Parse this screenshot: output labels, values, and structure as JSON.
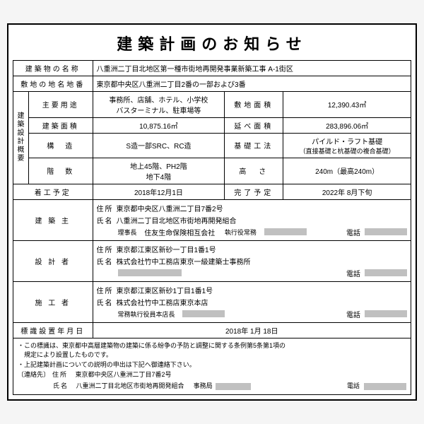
{
  "title": "建築計画のお知らせ",
  "rows": {
    "building_name_h": "建築物の名称",
    "building_name_v": "八重洲二丁目北地区第一種市街地再開発事業新築工事 A-1街区",
    "site_address_h": "敷地の地名地番",
    "site_address_v": "東京都中央区八重洲二丁目2番の一部および3番",
    "overview_h": "建築設計概要",
    "use_h": "主要用途",
    "use_v1": "事務所、店舗、ホテル、小学校",
    "use_v2": "バスターミナル、駐車場等",
    "site_area_h": "敷地面積",
    "site_area_v": "12,390.43㎡",
    "build_area_h": "建築面積",
    "build_area_v": "10,875.16㎡",
    "floor_area_h": "延べ面積",
    "floor_area_v": "283,896.06㎡",
    "structure_h": "構　造",
    "structure_v": "S造一部SRC、RC造",
    "foundation_h": "基礎工法",
    "foundation_v1": "パイルド・ラフト基礎",
    "foundation_v2": "（直接基礎と杭基礎の複合基礎）",
    "floors_h": "階　数",
    "floors_v1": "地上45階、PH2階",
    "floors_v2": "地下4階",
    "height_h": "高　さ",
    "height_v": "240m（最高240m）",
    "start_h": "着工予定",
    "start_v": "2018年12月1日",
    "end_h": "完了予定",
    "end_v": "2022年 8月下旬",
    "owner_h": "建 築 主",
    "owner_addr": "東京都中央区八重洲二丁目7番2号",
    "owner_name": "八重洲二丁目北地区市街地再開発組合",
    "owner_role1": "理事長",
    "owner_role1_v": "住友生命保険相互会社",
    "owner_role2": "執行役常務",
    "designer_h": "設 計 者",
    "designer_addr": "東京都江東区新砂一丁目1番1号",
    "designer_name": "株式会社竹中工務店東京一級建築士事務所",
    "contractor_h": "施 工 者",
    "contractor_addr": "東京都江東区新砂1丁目1番1号",
    "contractor_name": "株式会社竹中工務店東京本店",
    "contractor_role": "常務執行役員本店長",
    "sign_date_h": "標識設置年月日",
    "sign_date_v": "2018年 1月 18日",
    "addr_lbl": "住所",
    "name_lbl": "氏名",
    "tel_lbl": "電話",
    "note1": "・この標識は、東京都中高層建築物の建築に係る紛争の予防と調整に関する条例第5条第1項の",
    "note1b": "　規定により設置したものです。",
    "note2": "・上記建築計画についての説明の申出は下記へ御連絡下さい。",
    "contact_h": "〔連絡先〕",
    "contact_addr": "東京都中央区八重洲二丁目7番2号",
    "contact_name": "八重洲二丁目北地区市街地再開発組合",
    "contact_office": "事務局"
  }
}
